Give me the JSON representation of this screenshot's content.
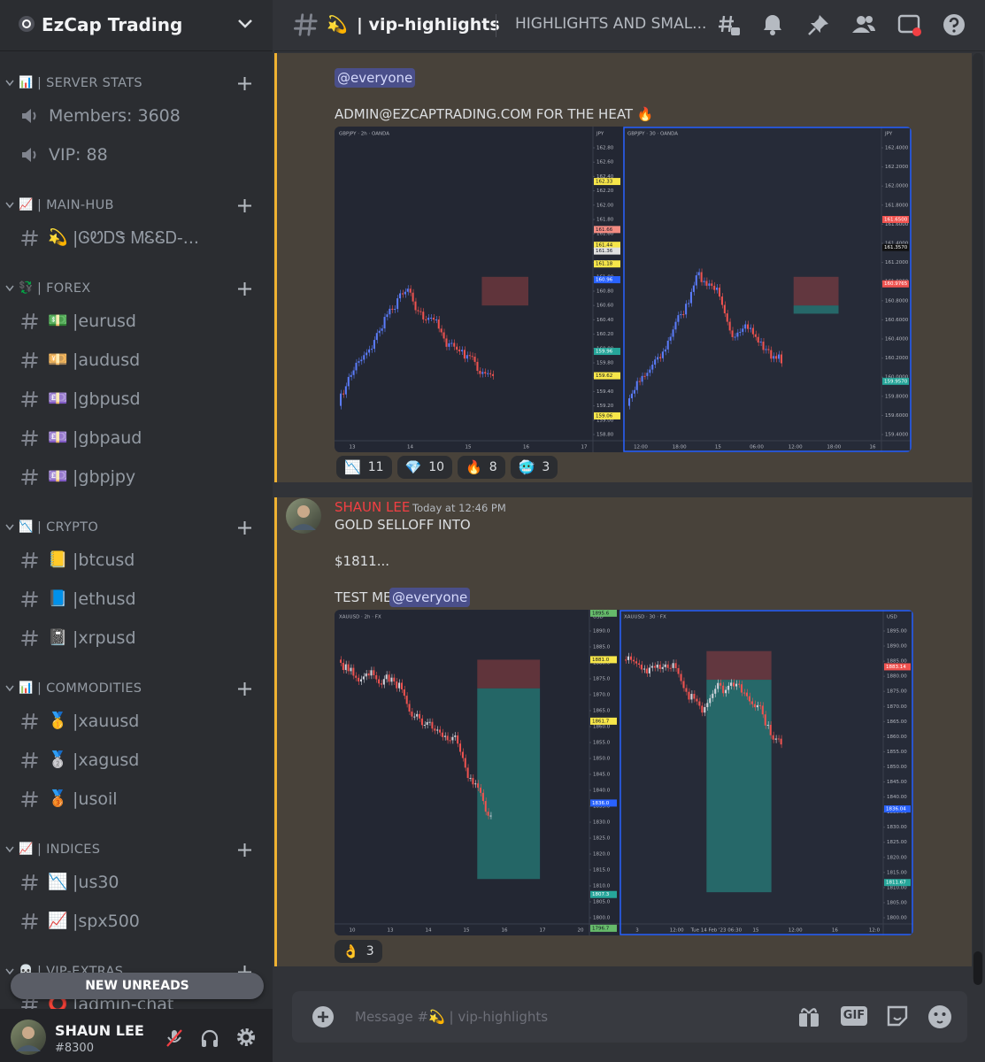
{
  "server": {
    "name": "EzCap Trading"
  },
  "sidebar": {
    "categories": [
      {
        "emoji": "📊",
        "name": "| SERVER STATS",
        "channels": [
          {
            "kind": "voice",
            "label": "Members: 3608"
          },
          {
            "kind": "voice",
            "label": "VIP: 88"
          }
        ]
      },
      {
        "emoji": "📈",
        "name": "| MAIN-HUB",
        "channels": [
          {
            "kind": "text",
            "emoji": "💫",
            "label": "|ᎶᏬᎠᏕ ᎷᏋᏋᎠ-..."
          }
        ]
      },
      {
        "emoji": "💱",
        "name": "| FOREX",
        "channels": [
          {
            "kind": "text",
            "emoji": "💵",
            "label": "|eurusd"
          },
          {
            "kind": "text",
            "emoji": "💴",
            "label": "|audusd"
          },
          {
            "kind": "text",
            "emoji": "💷",
            "label": "|gbpusd"
          },
          {
            "kind": "text",
            "emoji": "💷",
            "label": "|gbpaud"
          },
          {
            "kind": "text",
            "emoji": "💷",
            "label": "|gbpjpy"
          }
        ]
      },
      {
        "emoji": "📉",
        "name": "| CRYPTO",
        "channels": [
          {
            "kind": "text",
            "emoji": "📒",
            "label": "|btcusd"
          },
          {
            "kind": "text",
            "emoji": "📘",
            "label": "|ethusd"
          },
          {
            "kind": "text",
            "emoji": "📓",
            "label": "|xrpusd"
          }
        ]
      },
      {
        "emoji": "📊",
        "name": "| COMMODITIES",
        "channels": [
          {
            "kind": "text",
            "emoji": "🥇",
            "label": "|xauusd"
          },
          {
            "kind": "text",
            "emoji": "🥈",
            "label": "|xagusd"
          },
          {
            "kind": "text",
            "emoji": "🥉",
            "label": "|usoil"
          }
        ]
      },
      {
        "emoji": "📈",
        "name": "| INDICES",
        "channels": [
          {
            "kind": "text",
            "emoji": "📉",
            "label": "|us30"
          },
          {
            "kind": "text",
            "emoji": "📈",
            "label": "|spx500"
          }
        ]
      },
      {
        "emoji": "💀",
        "name": "| VIP-EXTRAS",
        "channels": [
          {
            "kind": "text",
            "emoji": "⭕",
            "label": "|admin-chat"
          }
        ]
      }
    ],
    "new_unreads": "NEW UNREADS"
  },
  "user": {
    "name": "SHAUN LEE",
    "tag": "#8300"
  },
  "channel_header": {
    "emoji": "💫",
    "name": "| vip-highlights",
    "topic": "HIGHLIGHTS AND SMAL..."
  },
  "messages": [
    {
      "mention": "@everyone",
      "text": "ADMIN@EZCAPTRADING.COM FOR THE HEAT 🔥",
      "image": {
        "panels": [
          {
            "header": "GBPJPY · 2h · OANDA",
            "unit": "JPY",
            "yticks": [
              "162.80",
              "162.60",
              "162.40",
              "162.20",
              "162.00",
              "161.80",
              "161.60",
              "161.40",
              "161.20",
              "161.00",
              "160.80",
              "160.60",
              "160.40",
              "160.20",
              "160.00",
              "159.80",
              "159.60",
              "159.40",
              "159.20",
              "159.00",
              "158.80"
            ],
            "xticks": [
              "13",
              "14",
              "15",
              "16",
              "17"
            ],
            "tags": [
              {
                "text": "162.33",
                "color": "#f7e64a"
              },
              {
                "text": "161.66",
                "color": "#f28b82"
              },
              {
                "text": "161.44",
                "color": "#f7e64a"
              },
              {
                "text": "161.36",
                "color": "#e0e0e0"
              },
              {
                "text": "161.18",
                "color": "#f7e64a"
              },
              {
                "text": "160.96",
                "color": "#2962ff"
              },
              {
                "text": "159.96",
                "color": "#26a69a"
              },
              {
                "text": "159.62",
                "color": "#f7e64a"
              },
              {
                "text": "159.06",
                "color": "#f7e64a"
              }
            ]
          },
          {
            "header": "GBPJPY · 30 · OANDA",
            "unit": "JPY",
            "yticks": [
              "162.4000",
              "162.2000",
              "162.0000",
              "161.8000",
              "161.6000",
              "161.4000",
              "161.2000",
              "161.0000",
              "160.8000",
              "160.6000",
              "160.4000",
              "160.2000",
              "160.0000",
              "159.8000",
              "159.6000",
              "159.4000"
            ],
            "xticks": [
              "12:00",
              "18:00",
              "15",
              "06:00",
              "12:00",
              "18:00",
              "16"
            ],
            "tags": [
              {
                "text": "161.6500",
                "color": "#ef5350"
              },
              {
                "text": "161.3570",
                "color": "#111111"
              },
              {
                "text": "160.9765",
                "color": "#ef5350"
              },
              {
                "text": "159.9570",
                "color": "#26a69a"
              }
            ]
          }
        ]
      },
      "reactions": [
        {
          "emoji": "📉",
          "count": 11
        },
        {
          "emoji": "💎",
          "count": 10
        },
        {
          "emoji": "🔥",
          "count": 8
        },
        {
          "emoji": "🥶",
          "count": 3
        }
      ]
    },
    {
      "author": "SHAUN LEE",
      "timestamp": "Today at 12:46 PM",
      "lines": [
        "GOLD SELLOFF INTO",
        "$1811...",
        "TEST ME"
      ],
      "mention": "@everyone",
      "image": {
        "panels": [
          {
            "header": "XAUUSD · 2h · FX",
            "unit": "USD",
            "yticks": [
              "1890.0",
              "1885.0",
              "1880.0",
              "1875.0",
              "1870.0",
              "1865.0",
              "1860.0",
              "1855.0",
              "1850.0",
              "1845.0",
              "1840.0",
              "1835.0",
              "1830.0",
              "1825.0",
              "1820.0",
              "1815.0",
              "1810.0",
              "1805.0",
              "1800.0"
            ],
            "xticks": [
              "10",
              "13",
              "14",
              "15",
              "16",
              "17",
              "20"
            ],
            "tags": [
              {
                "text": "1901.1",
                "color": "#f7e64a"
              },
              {
                "text": "1895.6",
                "color": "#66bb6a"
              },
              {
                "text": "1881.0",
                "color": "#f7e64a"
              },
              {
                "text": "1861.7",
                "color": "#f7e64a"
              },
              {
                "text": "1836.0",
                "color": "#2962ff"
              },
              {
                "text": "1807.3",
                "color": "#26a69a"
              },
              {
                "text": "1796.7",
                "color": "#66bb6a"
              }
            ]
          },
          {
            "header": "XAUUSD · 30 · FX",
            "unit": "USD",
            "yticks": [
              "1895.00",
              "1890.00",
              "1885.00",
              "1880.00",
              "1875.00",
              "1870.00",
              "1865.00",
              "1860.00",
              "1855.00",
              "1850.00",
              "1845.00",
              "1840.00",
              "1835.00",
              "1830.00",
              "1825.00",
              "1820.00",
              "1815.00",
              "1810.00",
              "1805.00",
              "1800.00"
            ],
            "xticks": [
              "3",
              "12:00",
              "Tue 14 Feb '23  06:30",
              "15",
              "12:00",
              "16",
              "12:0"
            ],
            "tags": [
              {
                "text": "1883.14",
                "color": "#ef5350"
              },
              {
                "text": "1836.04",
                "color": "#2962ff"
              },
              {
                "text": "1811.67",
                "color": "#26a69a"
              }
            ]
          }
        ]
      },
      "reactions": [
        {
          "emoji": "👌",
          "count": 3
        }
      ]
    }
  ],
  "composer": {
    "placeholder": "Message #💫 | vip-highlights",
    "gif": "GIF"
  }
}
